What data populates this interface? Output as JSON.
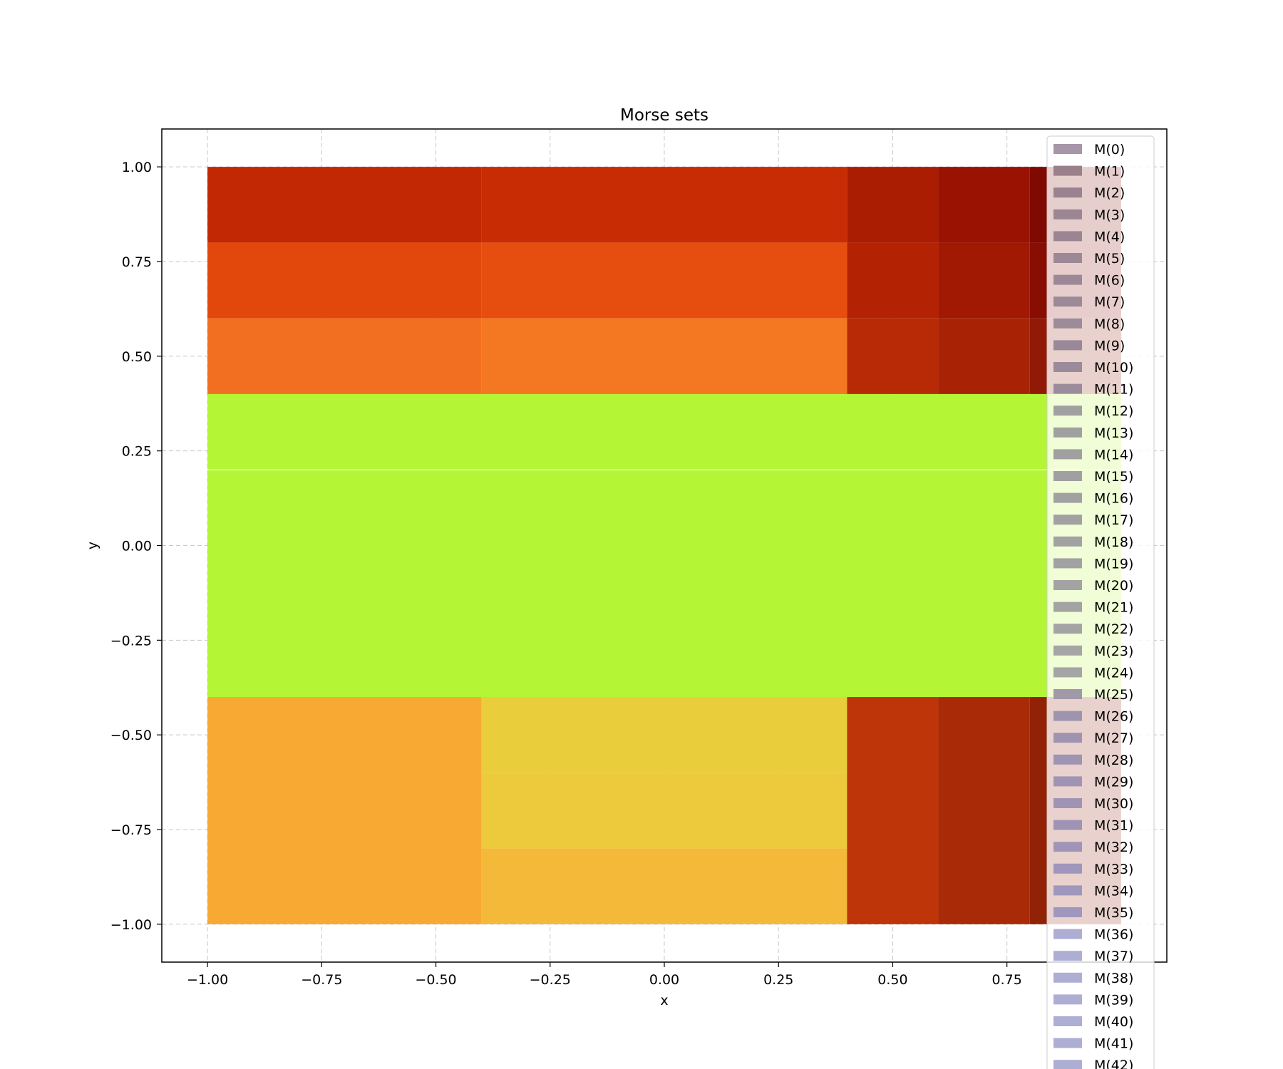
{
  "chart_data": {
    "type": "heatmap",
    "title": "Morse sets",
    "xlabel": "x",
    "ylabel": "y",
    "xlim": [
      -1.1,
      1.1
    ],
    "ylim": [
      -1.1,
      1.1
    ],
    "grid": true,
    "legend_position": "upper-right",
    "x_ticks": [
      "−1.00",
      "−0.75",
      "−0.50",
      "−0.25",
      "0.00",
      "0.25",
      "0.50",
      "0.75"
    ],
    "x_tick_values": [
      -1.0,
      -0.75,
      -0.5,
      -0.25,
      0.0,
      0.25,
      0.5,
      0.75
    ],
    "y_ticks": [
      "1.00",
      "0.75",
      "0.50",
      "0.25",
      "0.00",
      "−0.25",
      "−0.50",
      "−0.75",
      "−1.00"
    ],
    "y_tick_values": [
      1.0,
      0.75,
      0.5,
      0.25,
      0.0,
      -0.25,
      -0.5,
      -0.75,
      -1.0
    ],
    "rectangles": [
      {
        "x": [
          -1.0,
          -0.4
        ],
        "y": [
          0.8,
          1.0
        ],
        "color": "#c22803"
      },
      {
        "x": [
          -0.4,
          0.4
        ],
        "y": [
          0.8,
          1.0
        ],
        "color": "#c82c04"
      },
      {
        "x": [
          0.4,
          0.6
        ],
        "y": [
          0.8,
          1.0
        ],
        "color": "#ab1d03"
      },
      {
        "x": [
          0.6,
          0.8
        ],
        "y": [
          0.8,
          1.0
        ],
        "color": "#991202"
      },
      {
        "x": [
          0.8,
          1.0
        ],
        "y": [
          0.8,
          1.0
        ],
        "color": "#800a02"
      },
      {
        "x": [
          -1.0,
          -0.4
        ],
        "y": [
          0.6,
          0.8
        ],
        "color": "#e2480c"
      },
      {
        "x": [
          -0.4,
          0.4
        ],
        "y": [
          0.6,
          0.8
        ],
        "color": "#e64e10"
      },
      {
        "x": [
          0.4,
          0.6
        ],
        "y": [
          0.6,
          0.8
        ],
        "color": "#b42204"
      },
      {
        "x": [
          0.6,
          0.8
        ],
        "y": [
          0.6,
          0.8
        ],
        "color": "#a11803"
      },
      {
        "x": [
          0.8,
          1.0
        ],
        "y": [
          0.6,
          0.8
        ],
        "color": "#880e03"
      },
      {
        "x": [
          -1.0,
          -0.4
        ],
        "y": [
          0.4,
          0.6
        ],
        "color": "#f26e21"
      },
      {
        "x": [
          -0.4,
          0.4
        ],
        "y": [
          0.4,
          0.6
        ],
        "color": "#f47821"
      },
      {
        "x": [
          0.4,
          0.6
        ],
        "y": [
          0.4,
          0.6
        ],
        "color": "#b82a05"
      },
      {
        "x": [
          0.6,
          0.8
        ],
        "y": [
          0.4,
          0.6
        ],
        "color": "#a82205"
      },
      {
        "x": [
          0.8,
          1.0
        ],
        "y": [
          0.4,
          0.6
        ],
        "color": "#911a06"
      },
      {
        "x": [
          -1.0,
          1.0
        ],
        "y": [
          0.2,
          0.4
        ],
        "color": "#b4f536"
      },
      {
        "x": [
          -1.0,
          1.0
        ],
        "y": [
          -0.4,
          0.2
        ],
        "color": "#b4f536"
      },
      {
        "x": [
          -1.0,
          -0.4
        ],
        "y": [
          -1.0,
          -0.4
        ],
        "color": "#f7a934"
      },
      {
        "x": [
          -0.4,
          0.4
        ],
        "y": [
          -0.6,
          -0.4
        ],
        "color": "#e9cd3a"
      },
      {
        "x": [
          -0.4,
          0.4
        ],
        "y": [
          -0.8,
          -0.6
        ],
        "color": "#ecca3b"
      },
      {
        "x": [
          -0.4,
          0.4
        ],
        "y": [
          -1.0,
          -0.8
        ],
        "color": "#f4b938"
      },
      {
        "x": [
          0.4,
          0.6
        ],
        "y": [
          -1.0,
          -0.4
        ],
        "color": "#bd3508"
      },
      {
        "x": [
          0.6,
          0.8
        ],
        "y": [
          -1.0,
          -0.4
        ],
        "color": "#a92a07"
      },
      {
        "x": [
          0.8,
          1.0
        ],
        "y": [
          -1.0,
          -0.4
        ],
        "color": "#922206"
      }
    ],
    "legend": {
      "entries": [
        "M(0)",
        "M(1)",
        "M(2)",
        "M(3)",
        "M(4)",
        "M(5)",
        "M(6)",
        "M(7)",
        "M(8)",
        "M(9)",
        "M(10)",
        "M(11)",
        "M(12)",
        "M(13)",
        "M(14)",
        "M(15)",
        "M(16)",
        "M(17)",
        "M(18)",
        "M(19)",
        "M(20)",
        "M(21)",
        "M(22)",
        "M(23)",
        "M(24)",
        "M(25)",
        "M(26)",
        "M(27)",
        "M(28)",
        "M(29)",
        "M(30)",
        "M(31)",
        "M(32)",
        "M(33)",
        "M(34)",
        "M(35)",
        "M(36)",
        "M(37)",
        "M(38)",
        "M(39)",
        "M(40)",
        "M(41)",
        "M(42)"
      ],
      "colors": [
        "#a796a7",
        "#99808a",
        "#9a8290",
        "#9c8694",
        "#9b8592",
        "#9d8896",
        "#9c8896",
        "#9d8a98",
        "#9d8b99",
        "#998898",
        "#9a8a9a",
        "#9b8b9b",
        "#a0a0a0",
        "#a0a0a0",
        "#a0a0a0",
        "#a0a0a0",
        "#a1a1a1",
        "#a1a1a1",
        "#a2a2a2",
        "#a2a2a2",
        "#a3a3a3",
        "#a3a3a3",
        "#a4a4a4",
        "#a5a5a5",
        "#a5a5a5",
        "#a099a8",
        "#9f94ae",
        "#9f94b0",
        "#9f94b1",
        "#9f94b3",
        "#9f94b4",
        "#9f94b6",
        "#a095b8",
        "#a095ba",
        "#a097bd",
        "#a097bf",
        "#aeaed4",
        "#aeaed4",
        "#aeaed4",
        "#aeaed4",
        "#aeaed4",
        "#aeaed4",
        "#aeaed4"
      ]
    }
  }
}
